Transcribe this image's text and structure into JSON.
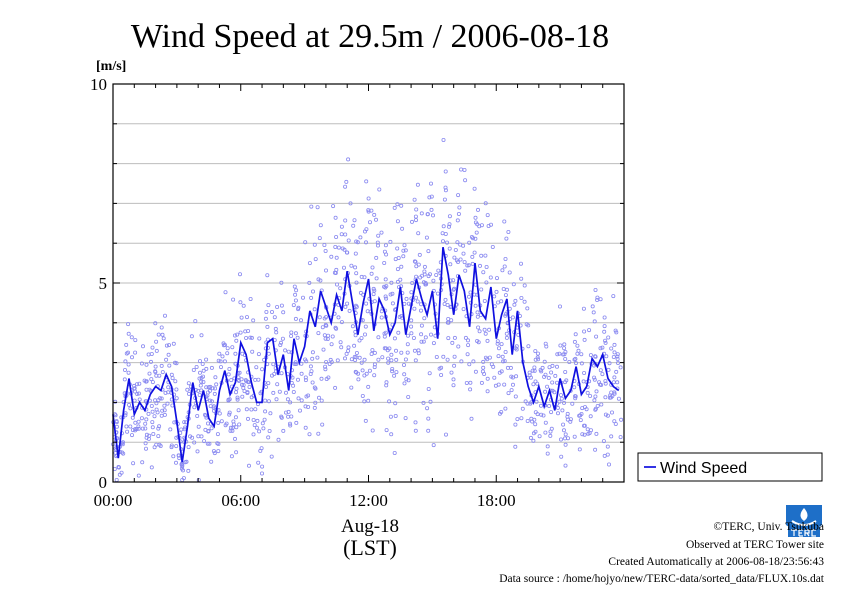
{
  "chart_data": {
    "type": "line",
    "title": "Wind Speed at 29.5m / 2006-08-18",
    "y_unit": "[m/s]",
    "x_date_label": "Aug-18",
    "xlabel": "(LST)",
    "ylim": [
      0,
      10
    ],
    "yticks": [
      "0",
      "5",
      "10"
    ],
    "y_minor_step": 1,
    "xlim_hours": [
      0,
      24
    ],
    "xticks": [
      "00:00",
      "06:00",
      "12:00",
      "18:00"
    ],
    "grid": true,
    "legend_position": "outside-right",
    "series": [
      {
        "name": "Wind Speed",
        "color": "#1010e0",
        "x_hours": [
          0,
          0.25,
          0.5,
          0.75,
          1,
          1.25,
          1.5,
          1.75,
          2,
          2.25,
          2.5,
          2.75,
          3,
          3.25,
          3.5,
          3.75,
          4,
          4.25,
          4.5,
          4.75,
          5,
          5.25,
          5.5,
          5.75,
          6,
          6.25,
          6.5,
          6.75,
          7,
          7.25,
          7.5,
          7.75,
          8,
          8.25,
          8.5,
          8.75,
          9,
          9.25,
          9.5,
          9.75,
          10,
          10.25,
          10.5,
          10.75,
          11,
          11.25,
          11.5,
          11.75,
          12,
          12.25,
          12.5,
          12.75,
          13,
          13.25,
          13.5,
          13.75,
          14,
          14.25,
          14.5,
          14.75,
          15,
          15.25,
          15.5,
          15.75,
          16,
          16.25,
          16.5,
          16.75,
          17,
          17.25,
          17.5,
          17.75,
          18,
          18.25,
          18.5,
          18.75,
          19,
          19.25,
          19.5,
          19.75,
          20,
          20.25,
          20.5,
          20.75,
          21,
          21.25,
          21.5,
          21.75,
          22,
          22.25,
          22.5,
          22.75,
          23,
          23.25,
          23.5,
          23.75
        ],
        "values": [
          1.7,
          0.6,
          1.8,
          2.6,
          1.7,
          2.0,
          1.8,
          2.2,
          2.4,
          2.3,
          2.7,
          2.4,
          1.5,
          0.5,
          1.4,
          2.5,
          1.8,
          2.3,
          1.6,
          1.4,
          2.3,
          2.8,
          2.2,
          2.5,
          3.5,
          3.2,
          2.5,
          2.0,
          2.0,
          3.5,
          3.6,
          2.7,
          3.2,
          2.3,
          3.6,
          3.0,
          3.4,
          4.3,
          3.9,
          4.8,
          4.4,
          4.0,
          4.7,
          4.3,
          5.3,
          4.5,
          3.7,
          4.5,
          5.1,
          3.8,
          4.6,
          4.3,
          3.7,
          4.0,
          4.9,
          3.7,
          4.4,
          5.1,
          4.6,
          4.2,
          4.8,
          3.6,
          5.9,
          5.2,
          4.2,
          5.2,
          4.8,
          3.9,
          5.5,
          4.3,
          4.1,
          4.9,
          3.6,
          4.2,
          4.6,
          3.2,
          4.3,
          3.0,
          2.4,
          2.0,
          2.4,
          1.9,
          2.3,
          1.8,
          2.6,
          2.1,
          2.3,
          2.9,
          2.2,
          2.4,
          3.1,
          2.9,
          3.2,
          2.6,
          2.4,
          2.3
        ]
      }
    ]
  },
  "credits": [
    "©TERC, Univ. Tsukuba",
    "Observed at TERC Tower site",
    "Created Automatically at 2006-08-18/23:56:43",
    "Data source : /home/hojyo/new/TERC-data/sorted_data/FLUX.10s.dat"
  ],
  "logo_text": "TERC"
}
